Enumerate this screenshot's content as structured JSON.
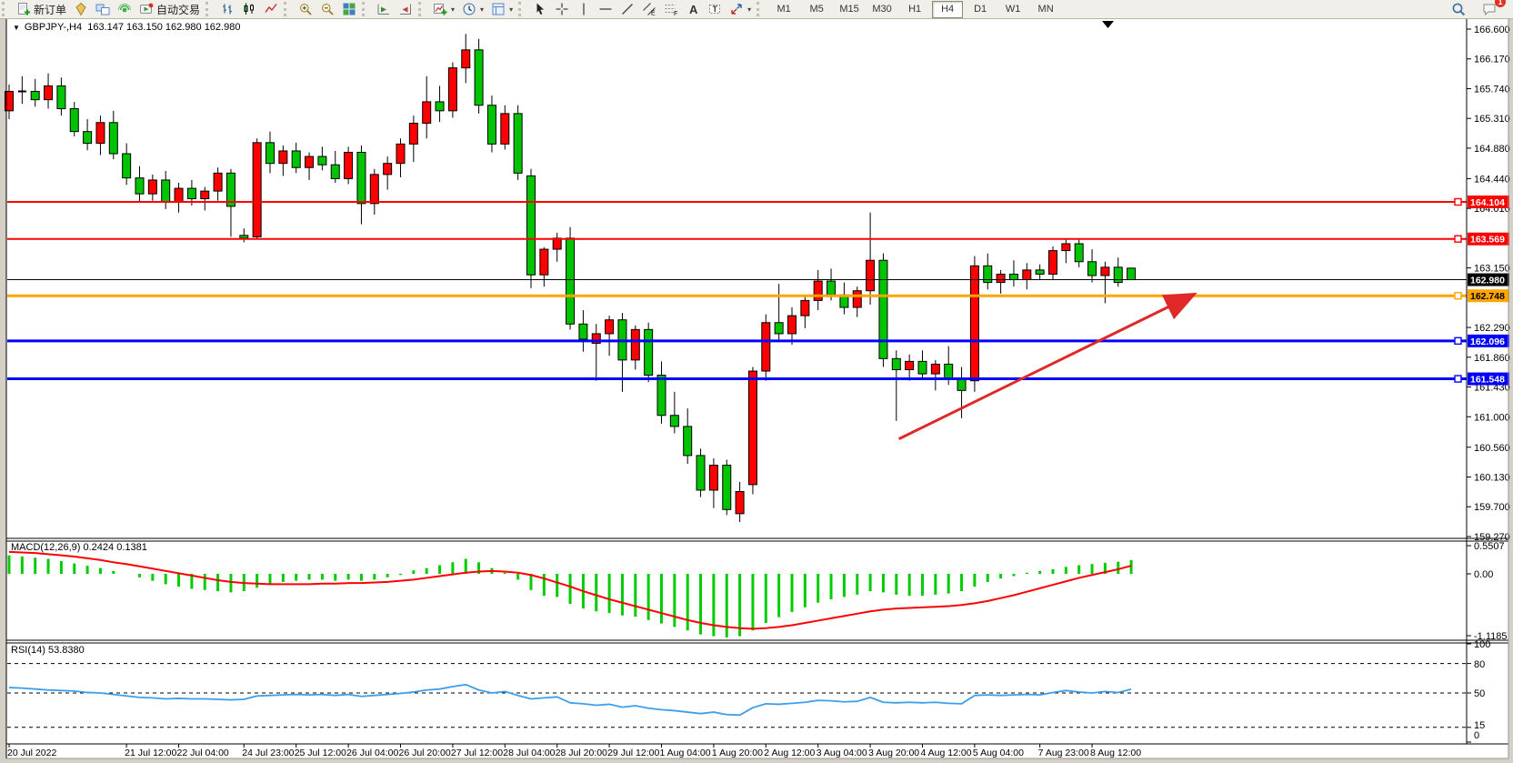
{
  "window": {
    "collapse_icon": "▼",
    "symbol_title": "GBPJPY-,H4",
    "quotes": "163.147 163.150 162.980 162.980"
  },
  "toolbar": {
    "group_order_note": "left to right",
    "buttons_left": [
      {
        "name": "new-order-button",
        "icon": "new-order-icon",
        "label": "新订单"
      },
      {
        "name": "market-button",
        "icon": "market-icon",
        "label": ""
      },
      {
        "name": "charts-window-button",
        "icon": "charts-icon",
        "label": ""
      },
      {
        "name": "signals-button",
        "icon": "signals-icon",
        "label": ""
      },
      {
        "name": "autotrade-button",
        "icon": "autotrade-icon",
        "label": "自动交易"
      }
    ],
    "buttons_chart": [
      {
        "name": "bar-chart-button",
        "icon": "bar-chart-icon"
      },
      {
        "name": "candlestick-button",
        "icon": "candlestick-icon"
      },
      {
        "name": "line-chart-button",
        "icon": "line-chart-icon"
      },
      {
        "name": "zoom-in-button",
        "icon": "zoom-in-icon"
      },
      {
        "name": "zoom-out-button",
        "icon": "zoom-out-icon"
      },
      {
        "name": "tile-windows-button",
        "icon": "tile-windows-icon"
      },
      {
        "name": "auto-scroll-button",
        "icon": "auto-scroll-icon"
      },
      {
        "name": "chart-shift-button",
        "icon": "chart-shift-icon"
      },
      {
        "name": "add-indicator-button",
        "icon": "add-indicator-icon",
        "dropdown": true
      },
      {
        "name": "periods-button",
        "icon": "periods-icon",
        "dropdown": true
      },
      {
        "name": "template-button",
        "icon": "template-icon",
        "dropdown": true
      }
    ],
    "buttons_objects": [
      {
        "name": "cursor-button",
        "icon": "cursor-icon"
      },
      {
        "name": "crosshair-button",
        "icon": "crosshair-icon"
      },
      {
        "name": "vline-button",
        "icon": "vline-icon"
      },
      {
        "name": "hline-button",
        "icon": "hline-icon"
      },
      {
        "name": "trendline-button",
        "icon": "trendline-icon"
      },
      {
        "name": "channel-button",
        "icon": "channel-icon"
      },
      {
        "name": "fibo-button",
        "icon": "fibo-icon"
      },
      {
        "name": "text-button",
        "icon": "text-icon"
      },
      {
        "name": "label-button",
        "icon": "label-icon"
      },
      {
        "name": "arrows-button",
        "icon": "arrows-icon",
        "dropdown": true
      }
    ],
    "timeframes": [
      "M1",
      "M5",
      "M15",
      "M30",
      "H1",
      "H4",
      "D1",
      "W1",
      "MN"
    ],
    "active_timeframe": "H4",
    "right_icons": [
      {
        "name": "search-button",
        "icon": "search-icon"
      },
      {
        "name": "notifications-button",
        "icon": "chat-icon",
        "badge": "1"
      }
    ]
  },
  "chart": {
    "price_axis": {
      "ticks": [
        "166.600",
        "166.170",
        "165.740",
        "165.310",
        "164.880",
        "164.440",
        "164.010",
        "163.150",
        "162.290",
        "161.860",
        "161.430",
        "161.000",
        "160.560",
        "160.130",
        "159.700",
        "159.270"
      ]
    },
    "hlines": [
      {
        "price": 164.104,
        "label": "164.104",
        "color": "#FF0000",
        "width": 2,
        "tag_bg": "#FF0000",
        "tag_fg": "#FFFFFF",
        "marker": true
      },
      {
        "price": 163.569,
        "label": "163.569",
        "color": "#FF0000",
        "width": 2,
        "tag_bg": "#FF0000",
        "tag_fg": "#FFFFFF",
        "marker": true
      },
      {
        "price": 162.98,
        "label": "162.980",
        "color": "#000000",
        "width": 1,
        "tag_bg": "#000000",
        "tag_fg": "#FFFFFF",
        "marker": false
      },
      {
        "price": 162.748,
        "label": "162.748",
        "color": "#FFA500",
        "width": 3,
        "tag_bg": "#FFA500",
        "tag_fg": "#000000",
        "marker": true
      },
      {
        "price": 162.096,
        "label": "162.096",
        "color": "#0000FF",
        "width": 3,
        "tag_bg": "#0000FF",
        "tag_fg": "#FFFFFF",
        "marker": true
      },
      {
        "price": 161.548,
        "label": "161.548",
        "color": "#0000FF",
        "width": 3,
        "tag_bg": "#0000FF",
        "tag_fg": "#FFFFFF",
        "marker": true
      }
    ],
    "arrow": {
      "from_bar": 68.2,
      "from_price": 160.68,
      "to_bar": 90.5,
      "to_price": 162.74,
      "color": "#E02828"
    },
    "time_axis": [
      {
        "text": "20 Jul 2022",
        "bar": 0
      },
      {
        "text": "21 Jul 12:00",
        "bar": 9
      },
      {
        "text": "22 Jul 04:00",
        "bar": 13
      },
      {
        "text": "24 Jul 23:00",
        "bar": 18
      },
      {
        "text": "25 Jul 12:00",
        "bar": 22
      },
      {
        "text": "26 Jul 04:00",
        "bar": 26
      },
      {
        "text": "26 Jul 20:00",
        "bar": 30
      },
      {
        "text": "27 Jul 12:00",
        "bar": 34
      },
      {
        "text": "28 Jul 04:00",
        "bar": 38
      },
      {
        "text": "28 Jul 20:00",
        "bar": 42
      },
      {
        "text": "29 Jul 12:00",
        "bar": 46
      },
      {
        "text": "1 Aug 04:00",
        "bar": 50
      },
      {
        "text": "1 Aug 20:00",
        "bar": 54
      },
      {
        "text": "2 Aug 12:00",
        "bar": 58
      },
      {
        "text": "3 Aug 04:00",
        "bar": 62
      },
      {
        "text": "3 Aug 20:00",
        "bar": 66
      },
      {
        "text": "4 Aug 12:00",
        "bar": 70
      },
      {
        "text": "5 Aug 04:00",
        "bar": 74
      },
      {
        "text": "7 Aug 23:00",
        "bar": 79
      },
      {
        "text": "8 Aug 12:00",
        "bar": 83
      }
    ],
    "candles": [
      [
        165.42,
        165.8,
        165.3,
        165.7
      ],
      [
        165.7,
        165.92,
        165.52,
        165.7
      ],
      [
        165.7,
        165.88,
        165.48,
        165.58
      ],
      [
        165.58,
        165.96,
        165.45,
        165.78
      ],
      [
        165.78,
        165.9,
        165.35,
        165.45
      ],
      [
        165.45,
        165.55,
        165.05,
        165.12
      ],
      [
        165.12,
        165.3,
        164.85,
        164.95
      ],
      [
        164.95,
        165.35,
        164.78,
        165.25
      ],
      [
        165.25,
        165.42,
        164.72,
        164.8
      ],
      [
        164.8,
        164.95,
        164.35,
        164.45
      ],
      [
        164.45,
        164.62,
        164.1,
        164.22
      ],
      [
        164.22,
        164.5,
        164.12,
        164.42
      ],
      [
        164.42,
        164.55,
        164.0,
        164.1
      ],
      [
        164.1,
        164.38,
        163.95,
        164.3
      ],
      [
        164.3,
        164.42,
        164.05,
        164.15
      ],
      [
        164.15,
        164.32,
        163.98,
        164.26
      ],
      [
        164.26,
        164.6,
        164.12,
        164.52
      ],
      [
        164.52,
        164.58,
        163.6,
        164.04
      ],
      [
        163.62,
        163.72,
        163.52,
        163.58
      ],
      [
        163.6,
        165.02,
        163.56,
        164.96
      ],
      [
        164.96,
        165.12,
        164.52,
        164.66
      ],
      [
        164.66,
        164.92,
        164.48,
        164.84
      ],
      [
        164.84,
        164.96,
        164.52,
        164.6
      ],
      [
        164.6,
        164.82,
        164.42,
        164.76
      ],
      [
        164.76,
        164.9,
        164.56,
        164.64
      ],
      [
        164.64,
        164.84,
        164.38,
        164.44
      ],
      [
        164.44,
        164.9,
        164.36,
        164.82
      ],
      [
        164.82,
        164.92,
        163.78,
        164.08
      ],
      [
        164.08,
        164.58,
        163.92,
        164.5
      ],
      [
        164.5,
        164.76,
        164.28,
        164.66
      ],
      [
        164.66,
        165.02,
        164.46,
        164.94
      ],
      [
        164.94,
        165.35,
        164.68,
        165.24
      ],
      [
        165.24,
        165.92,
        165.02,
        165.55
      ],
      [
        165.55,
        165.78,
        165.26,
        165.42
      ],
      [
        165.42,
        166.12,
        165.32,
        166.04
      ],
      [
        166.04,
        166.53,
        165.82,
        166.3
      ],
      [
        166.3,
        166.46,
        165.38,
        165.5
      ],
      [
        165.5,
        165.64,
        164.82,
        164.94
      ],
      [
        164.94,
        165.5,
        164.86,
        165.38
      ],
      [
        165.38,
        165.5,
        164.42,
        164.52
      ],
      [
        164.48,
        164.58,
        162.86,
        163.05
      ],
      [
        163.05,
        163.45,
        162.88,
        163.42
      ],
      [
        163.42,
        163.66,
        163.24,
        163.58
      ],
      [
        163.58,
        163.74,
        162.26,
        162.34
      ],
      [
        162.34,
        162.54,
        161.94,
        162.12
      ],
      [
        162.06,
        162.34,
        161.52,
        162.2
      ],
      [
        162.2,
        162.46,
        161.88,
        162.4
      ],
      [
        162.4,
        162.5,
        161.36,
        161.82
      ],
      [
        161.82,
        162.32,
        161.68,
        162.26
      ],
      [
        162.26,
        162.36,
        161.5,
        161.6
      ],
      [
        161.6,
        161.8,
        160.9,
        161.02
      ],
      [
        161.02,
        161.36,
        160.76,
        160.86
      ],
      [
        160.86,
        161.12,
        160.32,
        160.44
      ],
      [
        160.44,
        160.54,
        159.84,
        159.94
      ],
      [
        159.94,
        160.4,
        159.68,
        160.3
      ],
      [
        160.3,
        160.38,
        159.58,
        159.66
      ],
      [
        159.6,
        160.06,
        159.48,
        159.92
      ],
      [
        160.02,
        161.72,
        159.88,
        161.66
      ],
      [
        161.66,
        162.48,
        161.52,
        162.36
      ],
      [
        162.36,
        162.92,
        162.08,
        162.2
      ],
      [
        162.2,
        162.58,
        162.04,
        162.46
      ],
      [
        162.46,
        162.76,
        162.28,
        162.68
      ],
      [
        162.68,
        163.12,
        162.54,
        162.96
      ],
      [
        162.96,
        163.14,
        162.68,
        162.76
      ],
      [
        162.76,
        162.94,
        162.48,
        162.58
      ],
      [
        162.58,
        162.88,
        162.44,
        162.82
      ],
      [
        162.82,
        163.95,
        162.62,
        163.26
      ],
      [
        163.26,
        163.36,
        161.72,
        161.84
      ],
      [
        161.84,
        161.96,
        160.94,
        161.68
      ],
      [
        161.68,
        161.9,
        161.52,
        161.8
      ],
      [
        161.8,
        161.96,
        161.56,
        161.62
      ],
      [
        161.62,
        161.82,
        161.38,
        161.76
      ],
      [
        161.76,
        162.02,
        161.46,
        161.56
      ],
      [
        161.56,
        161.72,
        160.98,
        161.38
      ],
      [
        161.52,
        163.32,
        161.36,
        163.18
      ],
      [
        163.18,
        163.36,
        162.84,
        162.94
      ],
      [
        162.94,
        163.12,
        162.78,
        163.06
      ],
      [
        163.06,
        163.26,
        162.88,
        162.98
      ],
      [
        162.98,
        163.22,
        162.84,
        163.12
      ],
      [
        163.12,
        163.2,
        162.98,
        163.06
      ],
      [
        163.06,
        163.46,
        162.98,
        163.4
      ],
      [
        163.4,
        163.56,
        163.22,
        163.5
      ],
      [
        163.5,
        163.56,
        163.16,
        163.24
      ],
      [
        163.24,
        163.42,
        162.94,
        163.04
      ],
      [
        163.04,
        163.24,
        162.64,
        163.16
      ],
      [
        163.16,
        163.3,
        162.88,
        162.94
      ],
      [
        163.147,
        163.15,
        162.98,
        162.98
      ]
    ]
  },
  "macd": {
    "params_label": "MACD(12,26,9)",
    "main_value": "0.2424",
    "signal_value": "0.1381",
    "axis": [
      "0.5507",
      "0.00",
      "-1.1185"
    ],
    "hist": [
      0.32,
      0.3,
      0.28,
      0.26,
      0.22,
      0.18,
      0.14,
      0.1,
      0.05,
      0.0,
      -0.06,
      -0.12,
      -0.18,
      -0.22,
      -0.26,
      -0.28,
      -0.3,
      -0.32,
      -0.3,
      -0.24,
      -0.18,
      -0.14,
      -0.12,
      -0.1,
      -0.1,
      -0.12,
      -0.1,
      -0.12,
      -0.1,
      -0.06,
      -0.02,
      0.06,
      0.1,
      0.15,
      0.2,
      0.26,
      0.2,
      0.1,
      0.02,
      -0.1,
      -0.28,
      -0.38,
      -0.4,
      -0.52,
      -0.6,
      -0.65,
      -0.68,
      -0.72,
      -0.74,
      -0.8,
      -0.86,
      -0.92,
      -0.98,
      -1.05,
      -1.08,
      -1.1,
      -1.08,
      -0.98,
      -0.85,
      -0.75,
      -0.66,
      -0.58,
      -0.5,
      -0.44,
      -0.4,
      -0.36,
      -0.3,
      -0.32,
      -0.36,
      -0.38,
      -0.38,
      -0.36,
      -0.34,
      -0.3,
      -0.22,
      -0.14,
      -0.08,
      -0.04,
      0.02,
      0.05,
      0.08,
      0.12,
      0.15,
      0.17,
      0.19,
      0.21,
      0.24
    ],
    "signal": [
      0.38,
      0.37,
      0.36,
      0.34,
      0.32,
      0.3,
      0.27,
      0.24,
      0.2,
      0.17,
      0.13,
      0.09,
      0.05,
      0.01,
      -0.03,
      -0.07,
      -0.11,
      -0.14,
      -0.16,
      -0.17,
      -0.18,
      -0.18,
      -0.18,
      -0.18,
      -0.17,
      -0.17,
      -0.16,
      -0.16,
      -0.15,
      -0.14,
      -0.12,
      -0.1,
      -0.07,
      -0.04,
      -0.01,
      0.02,
      0.04,
      0.05,
      0.04,
      0.02,
      -0.02,
      -0.08,
      -0.15,
      -0.22,
      -0.3,
      -0.37,
      -0.44,
      -0.5,
      -0.56,
      -0.62,
      -0.68,
      -0.74,
      -0.8,
      -0.85,
      -0.89,
      -0.92,
      -0.94,
      -0.95,
      -0.94,
      -0.92,
      -0.89,
      -0.85,
      -0.81,
      -0.77,
      -0.73,
      -0.69,
      -0.65,
      -0.62,
      -0.6,
      -0.59,
      -0.58,
      -0.57,
      -0.56,
      -0.54,
      -0.51,
      -0.47,
      -0.42,
      -0.37,
      -0.31,
      -0.25,
      -0.19,
      -0.13,
      -0.07,
      -0.02,
      0.03,
      0.08,
      0.14
    ]
  },
  "rsi": {
    "name_label": "RSI(14)",
    "value": "53.8380",
    "axis": [
      "100",
      "80",
      "50",
      "15",
      "0"
    ],
    "dashed_levels": [
      80,
      50,
      15
    ],
    "values": [
      55.5,
      55,
      54,
      53,
      52.5,
      52,
      50.5,
      50,
      48.5,
      47,
      45.5,
      45,
      44,
      44.5,
      44,
      44,
      43.5,
      43,
      43.5,
      47,
      47.5,
      48,
      48.5,
      48,
      48.5,
      47.5,
      48.5,
      46.5,
      47.5,
      48.5,
      49.5,
      51,
      53,
      54,
      56.5,
      58.5,
      53,
      50,
      51.5,
      47.5,
      44,
      45,
      46,
      40,
      39,
      37.5,
      38.5,
      35.5,
      37,
      34.5,
      33,
      32,
      30.5,
      29,
      30.5,
      28,
      27.5,
      35,
      39,
      38.5,
      39.5,
      40.5,
      42.5,
      42,
      41,
      41.5,
      45.5,
      40.5,
      40,
      40.5,
      40,
      40.5,
      39.5,
      39,
      47.5,
      48,
      47.5,
      48,
      48.5,
      48,
      50.5,
      52.5,
      51,
      50,
      51.5,
      50.5,
      53.84
    ]
  },
  "colors": {
    "bull_body": "#FF0000",
    "bear_body": "#00C400",
    "wick": "#000000",
    "macd_hist": "#00CC00",
    "macd_signal": "#FF0000",
    "rsi_line": "#3E9EEB",
    "arrow": "#E02828",
    "toolbar_bg": "#f1efe9"
  }
}
